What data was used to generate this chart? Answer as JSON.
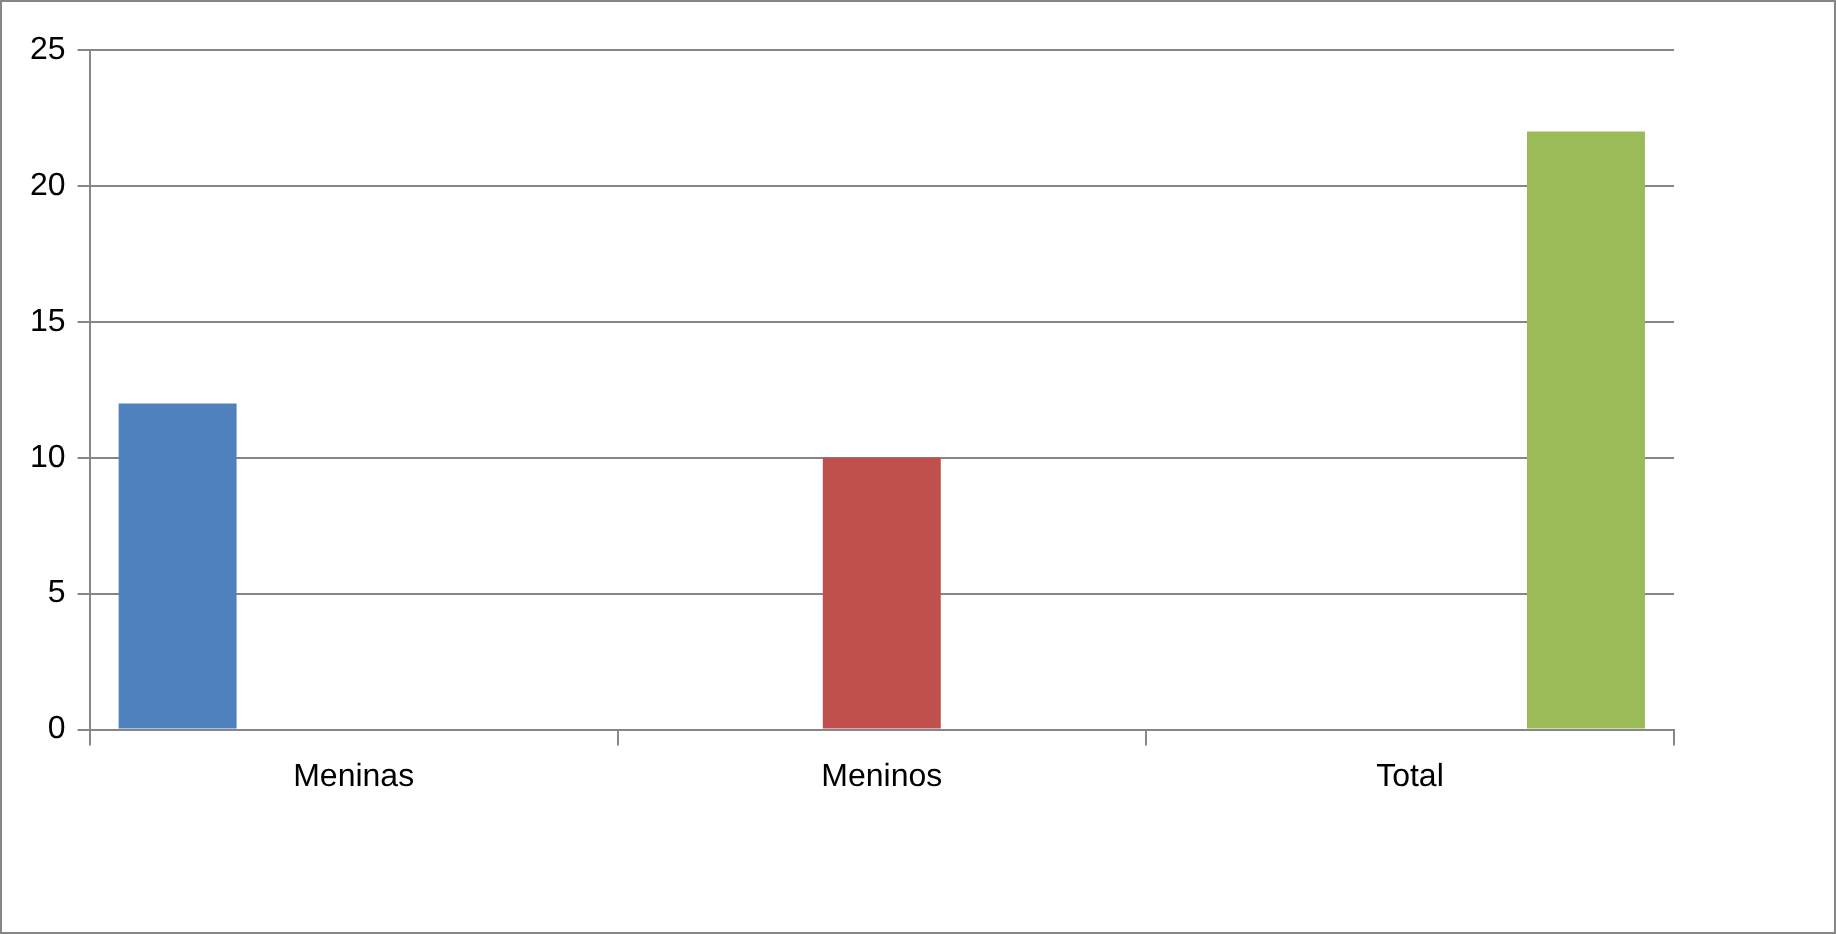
{
  "chart_data": {
    "type": "bar",
    "categories": [
      "Meninas",
      "Meninos",
      "Total"
    ],
    "series": [
      {
        "color": "#4f81bd",
        "values": [
          12,
          null,
          null
        ]
      },
      {
        "color": "#c0504d",
        "values": [
          null,
          10,
          null
        ]
      },
      {
        "color": "#9bbb59",
        "values": [
          null,
          null,
          22
        ]
      }
    ],
    "ylim": [
      0,
      25
    ],
    "yticks": [
      0,
      5,
      10,
      15,
      20,
      25
    ],
    "grid": "y",
    "legend": false
  }
}
